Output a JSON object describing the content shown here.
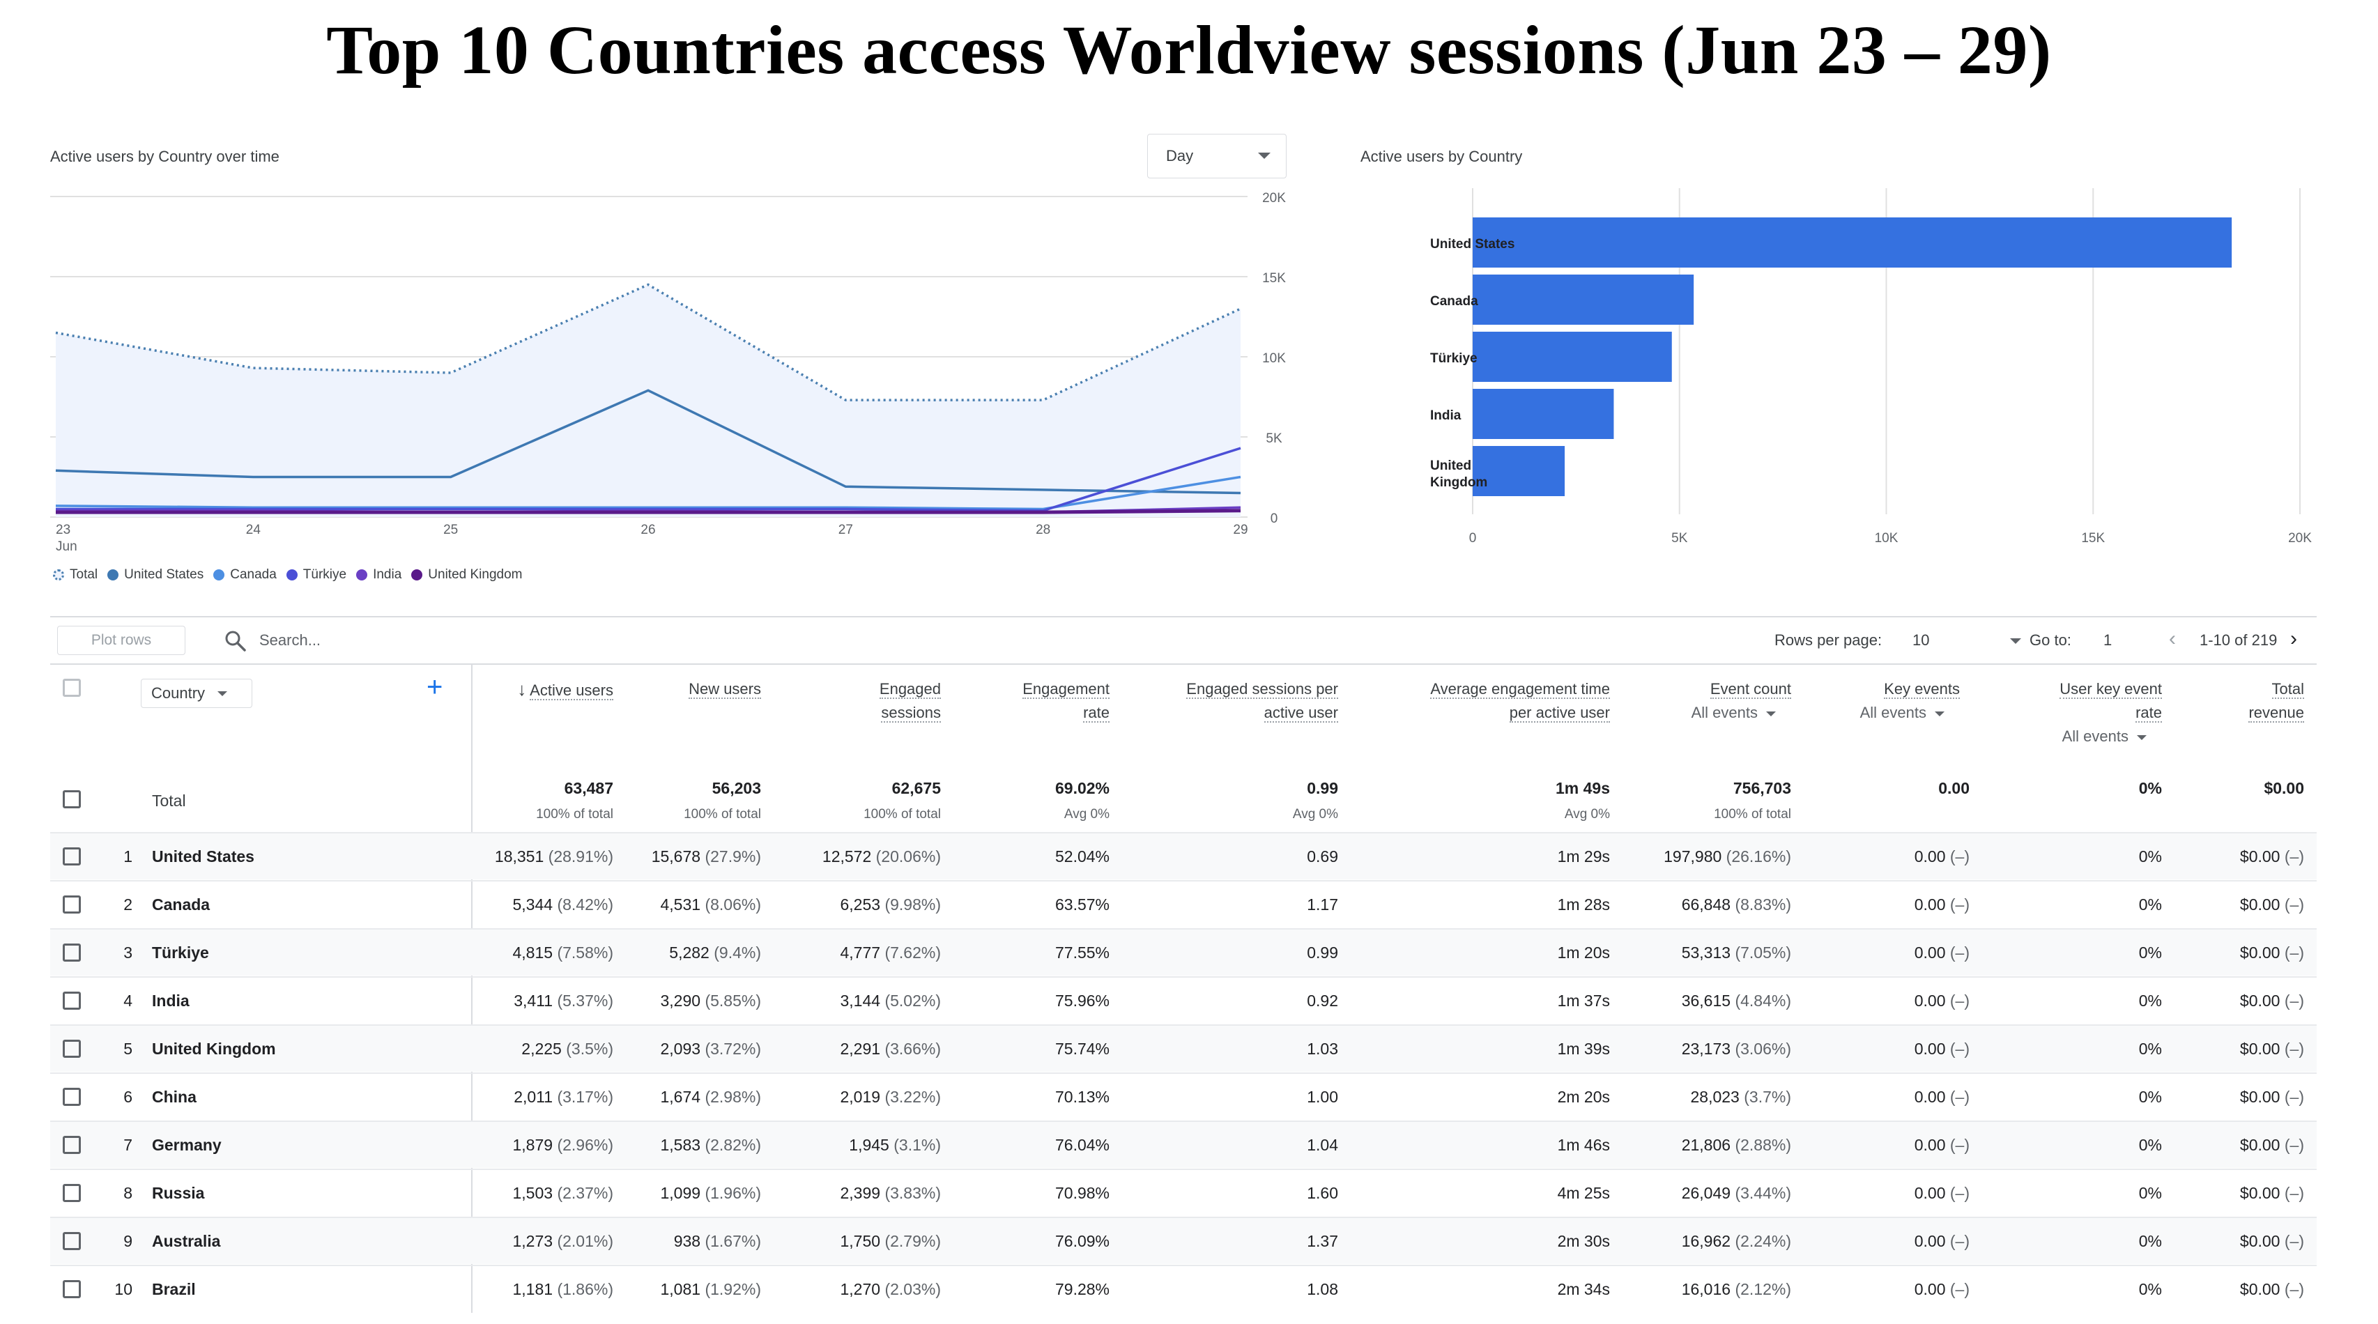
{
  "title": "Top 10 Countries access Worldview sessions (Jun 23 – 29)",
  "line_chart": {
    "title": "Active users by Country over time",
    "granularity": "Day",
    "y_ticks": [
      "20K",
      "15K",
      "10K",
      "5K",
      "0"
    ],
    "x_ticks": [
      "23",
      "24",
      "25",
      "26",
      "27",
      "28",
      "29"
    ],
    "x_month": "Jun",
    "legend": [
      {
        "name": "Total",
        "color": "#4a7fb0"
      },
      {
        "name": "United States",
        "color": "#3e78b2"
      },
      {
        "name": "Canada",
        "color": "#4d8fe2"
      },
      {
        "name": "Türkiye",
        "color": "#4b4fd6"
      },
      {
        "name": "India",
        "color": "#6a3fc4"
      },
      {
        "name": "United Kingdom",
        "color": "#5a1a8a"
      }
    ]
  },
  "bar_chart": {
    "title": "Active users by Country",
    "x_ticks": [
      "0",
      "5K",
      "10K",
      "15K",
      "20K"
    ],
    "color": "#3571e0"
  },
  "chart_data": [
    {
      "type": "line",
      "title": "Active users by Country over time",
      "x": [
        "23",
        "24",
        "25",
        "26",
        "27",
        "28",
        "29"
      ],
      "ylim": [
        0,
        20000
      ],
      "series": [
        {
          "name": "Total",
          "values": [
            11500,
            9300,
            9000,
            14500,
            7300,
            7300,
            13000
          ]
        },
        {
          "name": "United States",
          "values": [
            2900,
            2500,
            2500,
            7900,
            1900,
            1700,
            1500
          ]
        },
        {
          "name": "Canada",
          "values": [
            700,
            600,
            600,
            600,
            600,
            500,
            2500
          ]
        },
        {
          "name": "Türkiye",
          "values": [
            500,
            500,
            500,
            500,
            500,
            400,
            4300
          ]
        },
        {
          "name": "India",
          "values": [
            400,
            400,
            300,
            400,
            300,
            300,
            600
          ]
        },
        {
          "name": "United Kingdom",
          "values": [
            300,
            300,
            300,
            300,
            300,
            300,
            400
          ]
        }
      ]
    },
    {
      "type": "bar",
      "title": "Active users by Country",
      "categories": [
        "United States",
        "Canada",
        "Türkiye",
        "India",
        "United Kingdom"
      ],
      "values": [
        18351,
        5344,
        4815,
        3411,
        2225
      ],
      "xlim": [
        0,
        20000
      ]
    }
  ],
  "toolbar": {
    "plot_rows": "Plot rows",
    "search_placeholder": "Search...",
    "rows_per_page_label": "Rows per page:",
    "rows_per_page": "10",
    "goto_label": "Go to:",
    "goto_value": "1",
    "pagination": "1-10 of 219"
  },
  "table": {
    "dimension": "Country",
    "headers": {
      "active_users": "Active users",
      "new_users": "New users",
      "engaged_1": "Engaged",
      "engaged_2": "sessions",
      "eng_rate_1": "Engagement",
      "eng_rate_2": "rate",
      "eng_per_user_1": "Engaged sessions per",
      "eng_per_user_2": "active user",
      "avg_time_1": "Average engagement time",
      "avg_time_2": "per active user",
      "event_count": "Event count",
      "event_filter": "All events",
      "key_events": "Key events",
      "key_filter": "All events",
      "ukr_1": "User key event",
      "ukr_2": "rate",
      "ukr_filter": "All events",
      "revenue_1": "Total",
      "revenue_2": "revenue"
    },
    "total": {
      "label": "Total",
      "active_users": "63,487",
      "active_users_sub": "100% of total",
      "new_users": "56,203",
      "new_users_sub": "100% of total",
      "engaged": "62,675",
      "engaged_sub": "100% of total",
      "eng_rate": "69.02%",
      "eng_rate_sub": "Avg 0%",
      "eng_per_user": "0.99",
      "eng_per_user_sub": "Avg 0%",
      "avg_time": "1m 49s",
      "avg_time_sub": "Avg 0%",
      "event_count": "756,703",
      "event_count_sub": "100% of total",
      "key_events": "0.00",
      "ukr": "0%",
      "revenue": "$0.00"
    },
    "rows": [
      {
        "idx": "1",
        "country": "United States",
        "au": "18,351",
        "au_p": "(28.91%)",
        "nu": "15,678",
        "nu_p": "(27.9%)",
        "es": "12,572",
        "es_p": "(20.06%)",
        "er": "52.04%",
        "espu": "0.69",
        "aet": "1m 29s",
        "ec": "197,980",
        "ec_p": "(26.16%)",
        "ke": "0.00",
        "ke_p": "(–)",
        "ukr": "0%",
        "rev": "$0.00",
        "rev_p": "(–)"
      },
      {
        "idx": "2",
        "country": "Canada",
        "au": "5,344",
        "au_p": "(8.42%)",
        "nu": "4,531",
        "nu_p": "(8.06%)",
        "es": "6,253",
        "es_p": "(9.98%)",
        "er": "63.57%",
        "espu": "1.17",
        "aet": "1m 28s",
        "ec": "66,848",
        "ec_p": "(8.83%)",
        "ke": "0.00",
        "ke_p": "(–)",
        "ukr": "0%",
        "rev": "$0.00",
        "rev_p": "(–)"
      },
      {
        "idx": "3",
        "country": "Türkiye",
        "au": "4,815",
        "au_p": "(7.58%)",
        "nu": "5,282",
        "nu_p": "(9.4%)",
        "es": "4,777",
        "es_p": "(7.62%)",
        "er": "77.55%",
        "espu": "0.99",
        "aet": "1m 20s",
        "ec": "53,313",
        "ec_p": "(7.05%)",
        "ke": "0.00",
        "ke_p": "(–)",
        "ukr": "0%",
        "rev": "$0.00",
        "rev_p": "(–)"
      },
      {
        "idx": "4",
        "country": "India",
        "au": "3,411",
        "au_p": "(5.37%)",
        "nu": "3,290",
        "nu_p": "(5.85%)",
        "es": "3,144",
        "es_p": "(5.02%)",
        "er": "75.96%",
        "espu": "0.92",
        "aet": "1m 37s",
        "ec": "36,615",
        "ec_p": "(4.84%)",
        "ke": "0.00",
        "ke_p": "(–)",
        "ukr": "0%",
        "rev": "$0.00",
        "rev_p": "(–)"
      },
      {
        "idx": "5",
        "country": "United Kingdom",
        "au": "2,225",
        "au_p": "(3.5%)",
        "nu": "2,093",
        "nu_p": "(3.72%)",
        "es": "2,291",
        "es_p": "(3.66%)",
        "er": "75.74%",
        "espu": "1.03",
        "aet": "1m 39s",
        "ec": "23,173",
        "ec_p": "(3.06%)",
        "ke": "0.00",
        "ke_p": "(–)",
        "ukr": "0%",
        "rev": "$0.00",
        "rev_p": "(–)"
      },
      {
        "idx": "6",
        "country": "China",
        "au": "2,011",
        "au_p": "(3.17%)",
        "nu": "1,674",
        "nu_p": "(2.98%)",
        "es": "2,019",
        "es_p": "(3.22%)",
        "er": "70.13%",
        "espu": "1.00",
        "aet": "2m 20s",
        "ec": "28,023",
        "ec_p": "(3.7%)",
        "ke": "0.00",
        "ke_p": "(–)",
        "ukr": "0%",
        "rev": "$0.00",
        "rev_p": "(–)"
      },
      {
        "idx": "7",
        "country": "Germany",
        "au": "1,879",
        "au_p": "(2.96%)",
        "nu": "1,583",
        "nu_p": "(2.82%)",
        "es": "1,945",
        "es_p": "(3.1%)",
        "er": "76.04%",
        "espu": "1.04",
        "aet": "1m 46s",
        "ec": "21,806",
        "ec_p": "(2.88%)",
        "ke": "0.00",
        "ke_p": "(–)",
        "ukr": "0%",
        "rev": "$0.00",
        "rev_p": "(–)"
      },
      {
        "idx": "8",
        "country": "Russia",
        "au": "1,503",
        "au_p": "(2.37%)",
        "nu": "1,099",
        "nu_p": "(1.96%)",
        "es": "2,399",
        "es_p": "(3.83%)",
        "er": "70.98%",
        "espu": "1.60",
        "aet": "4m 25s",
        "ec": "26,049",
        "ec_p": "(3.44%)",
        "ke": "0.00",
        "ke_p": "(–)",
        "ukr": "0%",
        "rev": "$0.00",
        "rev_p": "(–)"
      },
      {
        "idx": "9",
        "country": "Australia",
        "au": "1,273",
        "au_p": "(2.01%)",
        "nu": "938",
        "nu_p": "(1.67%)",
        "es": "1,750",
        "es_p": "(2.79%)",
        "er": "76.09%",
        "espu": "1.37",
        "aet": "2m 30s",
        "ec": "16,962",
        "ec_p": "(2.24%)",
        "ke": "0.00",
        "ke_p": "(–)",
        "ukr": "0%",
        "rev": "$0.00",
        "rev_p": "(–)"
      },
      {
        "idx": "10",
        "country": "Brazil",
        "au": "1,181",
        "au_p": "(1.86%)",
        "nu": "1,081",
        "nu_p": "(1.92%)",
        "es": "1,270",
        "es_p": "(2.03%)",
        "er": "79.28%",
        "espu": "1.08",
        "aet": "2m 34s",
        "ec": "16,016",
        "ec_p": "(2.12%)",
        "ke": "0.00",
        "ke_p": "(–)",
        "ukr": "0%",
        "rev": "$0.00",
        "rev_p": "(–)"
      }
    ]
  }
}
